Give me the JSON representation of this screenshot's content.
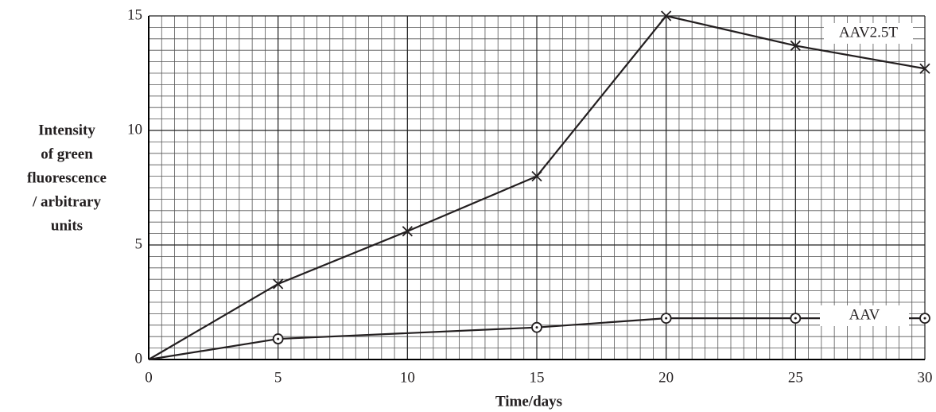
{
  "chart_data": {
    "type": "line",
    "y_label": [
      "Intensity",
      "of green",
      "fluorescence",
      "/ arbitrary",
      "units"
    ],
    "x_label": "Time/days",
    "xlim": [
      0,
      30
    ],
    "xticks": [
      0,
      5,
      10,
      15,
      20,
      25,
      30
    ],
    "ylim": [
      0,
      15
    ],
    "yticks": [
      0,
      5,
      10,
      15
    ],
    "grid": true,
    "series": [
      {
        "name": "AAV2.5T",
        "color": "#231f20",
        "marker": "x",
        "x": [
          0,
          5,
          10,
          15,
          20,
          25,
          30
        ],
        "values": [
          0,
          3.3,
          5.6,
          8.0,
          15,
          13.7,
          12.7
        ]
      },
      {
        "name": "AAV",
        "color": "#231f20",
        "marker": "circle",
        "x": [
          0,
          5,
          15,
          20,
          25,
          30
        ],
        "values": [
          0,
          0.9,
          1.4,
          1.8,
          1.8,
          1.8
        ]
      }
    ]
  }
}
